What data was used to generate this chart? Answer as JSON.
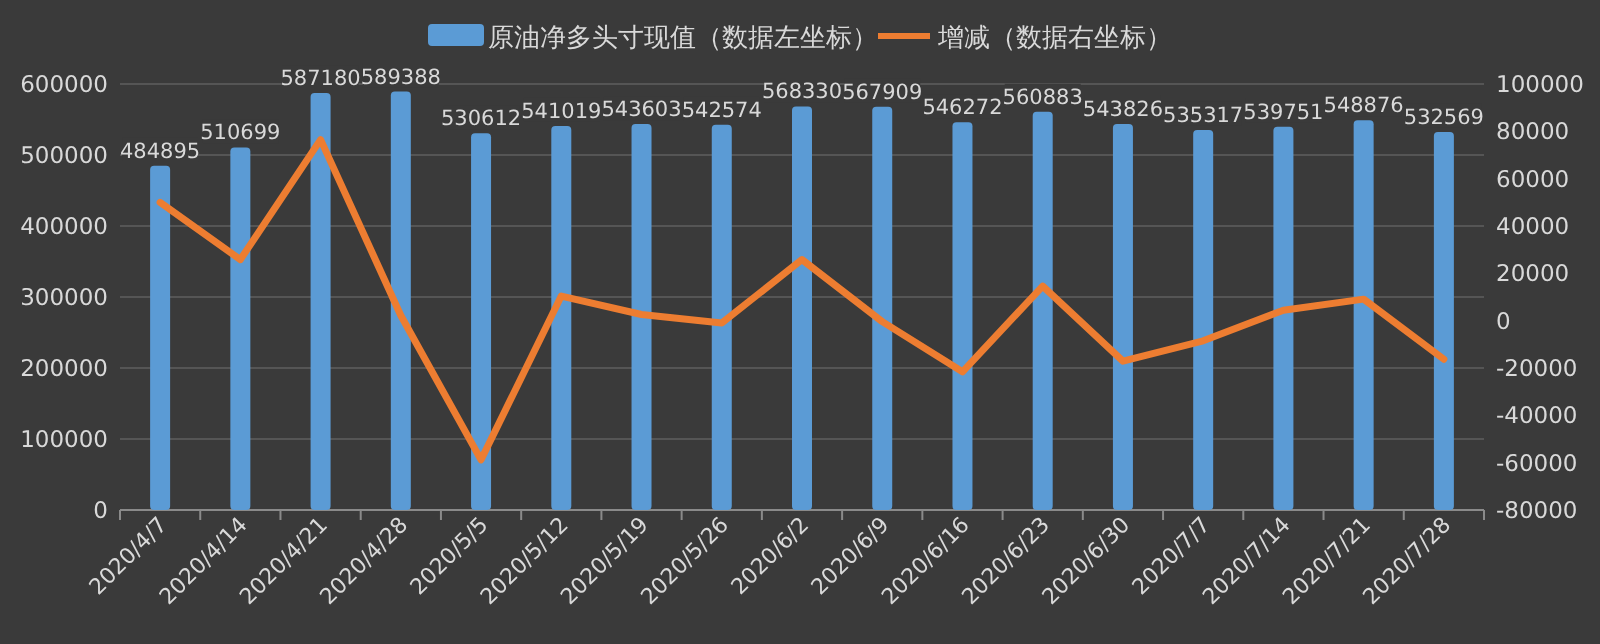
{
  "chart_data": {
    "type": "bar",
    "categories": [
      "2020/4/7",
      "2020/4/14",
      "2020/4/21",
      "2020/4/28",
      "2020/5/5",
      "2020/5/12",
      "2020/5/19",
      "2020/5/26",
      "2020/6/2",
      "2020/6/9",
      "2020/6/16",
      "2020/6/23",
      "2020/6/30",
      "2020/7/7",
      "2020/7/14",
      "2020/7/21",
      "2020/7/28"
    ],
    "series": [
      {
        "name": "原油净多头寸现值（数据左坐标）",
        "color": "#5b9bd5",
        "values": [
          484895,
          510699,
          587180,
          589388,
          530612,
          541019,
          543603,
          542574,
          568330,
          567909,
          546272,
          560883,
          543826,
          535317,
          539751,
          548876,
          532569
        ],
        "value_labels": [
          "484895",
          "510699",
          "587180",
          "589388",
          "530612",
          "541019",
          "543603",
          "542574",
          "568330",
          "567909",
          "546272",
          "560883",
          "543826",
          "535317",
          "539751",
          "548876",
          "532569"
        ]
      },
      {
        "name": "增减（数据右坐标）",
        "type": "line",
        "axis": "y2",
        "color": "#ed7d31",
        "values": [
          50000,
          25800,
          76500,
          2200,
          -58800,
          10400,
          2600,
          -1000,
          25800,
          -400,
          -21600,
          14600,
          -17100,
          -8500,
          4400,
          9100,
          -16300
        ]
      }
    ],
    "ylim": [
      0,
      600000
    ],
    "yticks": [
      0,
      100000,
      200000,
      300000,
      400000,
      500000,
      600000
    ],
    "y2lim": [
      -80000,
      100000
    ],
    "y2ticks": [
      -80000,
      -60000,
      -40000,
      -20000,
      0,
      20000,
      40000,
      60000,
      80000,
      100000
    ],
    "grid": "y",
    "legend": "top",
    "marker": "none",
    "line_style": "solid"
  }
}
